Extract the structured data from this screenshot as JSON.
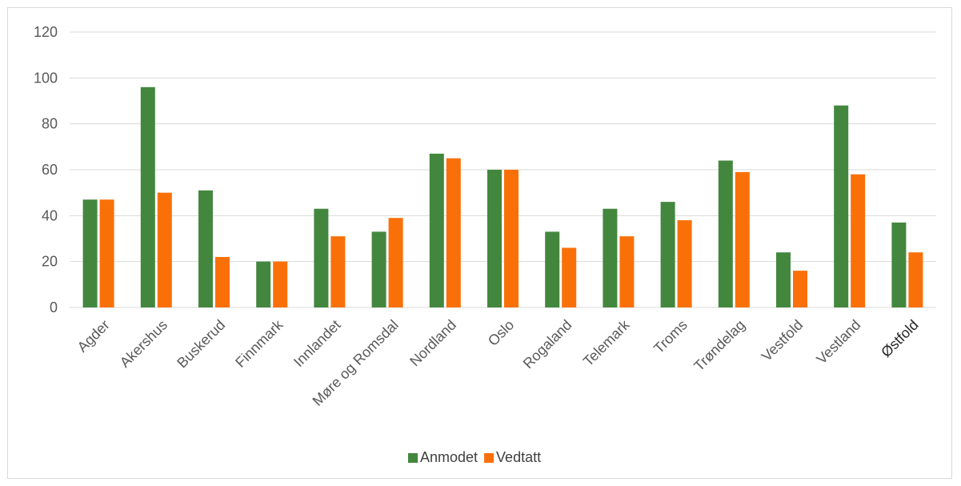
{
  "chart_data": {
    "type": "bar",
    "title": "",
    "xlabel": "",
    "ylabel": "",
    "ylim": [
      0,
      120
    ],
    "yticks": [
      0,
      20,
      40,
      60,
      80,
      100,
      120
    ],
    "grid": true,
    "legend_position": "bottom",
    "categories": [
      "Agder",
      "Akershus",
      "Buskerud",
      "Finnmark",
      "Innlandet",
      "Møre og Romsdal",
      "Nordland",
      "Oslo",
      "Rogaland",
      "Telemark",
      "Troms",
      "Trøndelag",
      "Vestfold",
      "Vestland",
      "Østfold"
    ],
    "series": [
      {
        "name": "Anmodet",
        "color": "#43873e",
        "values": [
          47,
          96,
          51,
          20,
          43,
          33,
          67,
          60,
          33,
          43,
          46,
          64,
          24,
          88,
          37
        ]
      },
      {
        "name": "Vedtatt",
        "color": "#fa7008",
        "values": [
          47,
          50,
          22,
          20,
          31,
          39,
          65,
          60,
          26,
          31,
          38,
          59,
          16,
          58,
          24
        ]
      }
    ]
  },
  "colors": {
    "grid": "#d9d9d9",
    "axis": "#d9d9d9",
    "frame": "#d9d9d9"
  }
}
